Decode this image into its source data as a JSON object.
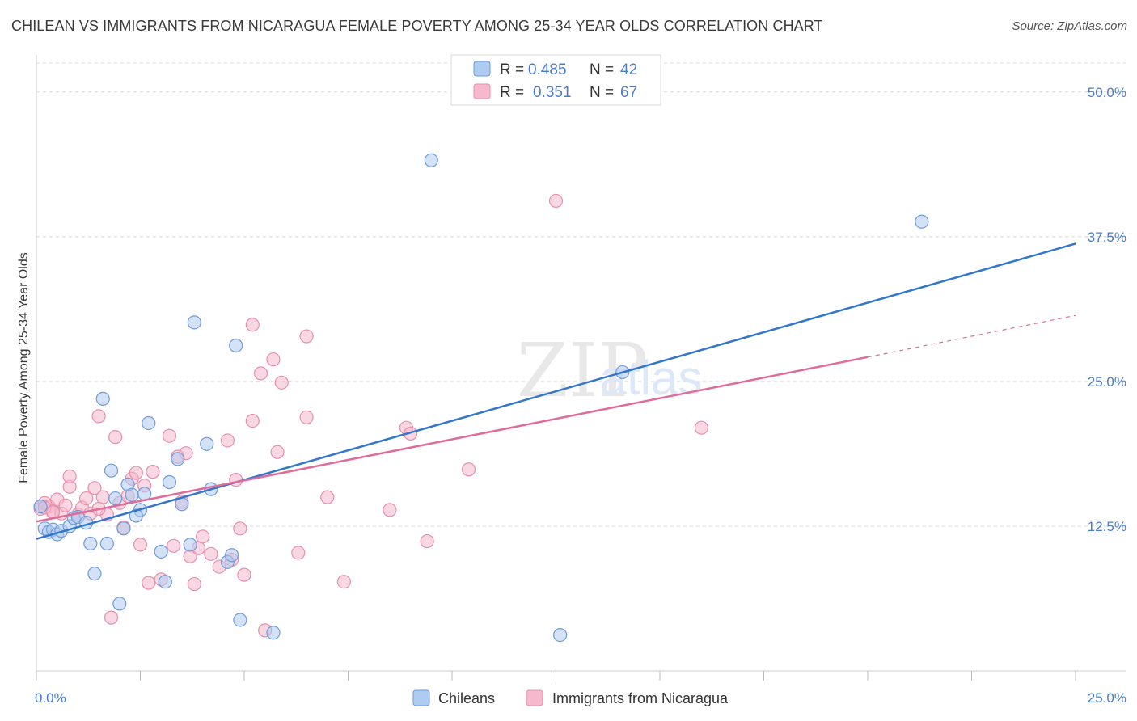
{
  "title": "CHILEAN VS IMMIGRANTS FROM NICARAGUA FEMALE POVERTY AMONG 25-34 YEAR OLDS CORRELATION CHART",
  "source": "Source: ZipAtlas.com",
  "watermark": "ZIPatlas",
  "colors": {
    "blue_fill": "#aecbf0",
    "blue_stroke": "#6f9bd8",
    "blue_line": "#3377cc",
    "pink_fill": "#f5b8cc",
    "pink_stroke": "#e78fab",
    "pink_line": "#e06b99",
    "tick_text": "#4a7cc9",
    "grid": "#d8d8d8"
  },
  "legend": {
    "rows": [
      {
        "r_label": "R =",
        "r_value": "0.485",
        "n_label": "N =",
        "n_value": "42"
      },
      {
        "r_label": "R =",
        "r_value": "0.351",
        "n_label": "N =",
        "n_value": "67"
      }
    ]
  },
  "chart_data": {
    "type": "scatter",
    "title": "CHILEAN VS IMMIGRANTS FROM NICARAGUA FEMALE POVERTY AMONG 25-34 YEAR OLDS CORRELATION CHART",
    "xlabel": "",
    "ylabel": "Female Poverty Among 25-34 Year Olds",
    "xlim": [
      0,
      25
    ],
    "ylim": [
      0,
      52.5
    ],
    "x_ticks": [
      "0.0%",
      "25.0%"
    ],
    "y_ticks": [
      {
        "value": 12.5,
        "label": "12.5%"
      },
      {
        "value": 25.0,
        "label": "25.0%"
      },
      {
        "value": 37.5,
        "label": "37.5%"
      },
      {
        "value": 50.0,
        "label": "50.0%"
      }
    ],
    "grid": true,
    "legend_position": "top-center",
    "series": [
      {
        "name": "Chileans",
        "color": "#aecbf0",
        "r": 0.485,
        "n": 42,
        "trend": {
          "x": [
            0,
            25
          ],
          "y": [
            11.4,
            36.9
          ]
        },
        "points": [
          [
            0.1,
            14.2
          ],
          [
            0.2,
            12.3
          ],
          [
            0.3,
            12.0
          ],
          [
            0.4,
            12.2
          ],
          [
            0.5,
            11.8
          ],
          [
            0.6,
            12.1
          ],
          [
            0.8,
            12.5
          ],
          [
            0.9,
            13.2
          ],
          [
            1.0,
            13.3
          ],
          [
            1.2,
            12.8
          ],
          [
            1.3,
            11.0
          ],
          [
            1.4,
            8.4
          ],
          [
            1.6,
            23.5
          ],
          [
            1.7,
            11.0
          ],
          [
            1.8,
            17.3
          ],
          [
            1.9,
            14.9
          ],
          [
            2.0,
            5.8
          ],
          [
            2.1,
            12.3
          ],
          [
            2.2,
            16.1
          ],
          [
            2.3,
            15.2
          ],
          [
            2.5,
            13.9
          ],
          [
            2.6,
            15.3
          ],
          [
            2.7,
            21.4
          ],
          [
            3.0,
            10.3
          ],
          [
            3.1,
            7.7
          ],
          [
            3.2,
            16.3
          ],
          [
            3.4,
            18.3
          ],
          [
            3.5,
            14.4
          ],
          [
            3.7,
            10.9
          ],
          [
            3.8,
            30.1
          ],
          [
            4.1,
            19.6
          ],
          [
            4.2,
            15.7
          ],
          [
            4.6,
            9.4
          ],
          [
            4.7,
            10.0
          ],
          [
            4.8,
            28.1
          ],
          [
            4.9,
            4.4
          ],
          [
            5.7,
            3.3
          ],
          [
            9.5,
            44.1
          ],
          [
            12.6,
            3.1
          ],
          [
            14.1,
            25.8
          ],
          [
            21.3,
            38.8
          ],
          [
            2.4,
            13.4
          ]
        ]
      },
      {
        "name": "Immigrants from Nicaragua",
        "color": "#f5b8cc",
        "r": 0.351,
        "n": 67,
        "trend": {
          "x": [
            0,
            20
          ],
          "y": [
            12.9,
            27.1
          ]
        },
        "trend_dashed": {
          "x": [
            20,
            25
          ],
          "y": [
            27.1,
            30.7
          ]
        },
        "points": [
          [
            0.1,
            14.0
          ],
          [
            0.2,
            14.5
          ],
          [
            0.3,
            14.2
          ],
          [
            0.4,
            13.8
          ],
          [
            0.5,
            14.8
          ],
          [
            0.6,
            13.6
          ],
          [
            0.7,
            14.3
          ],
          [
            0.8,
            15.9
          ],
          [
            0.8,
            16.8
          ],
          [
            1.0,
            13.5
          ],
          [
            1.1,
            14.1
          ],
          [
            1.2,
            14.9
          ],
          [
            1.3,
            13.6
          ],
          [
            1.4,
            15.8
          ],
          [
            1.5,
            22.0
          ],
          [
            1.6,
            15.0
          ],
          [
            1.7,
            13.5
          ],
          [
            1.8,
            4.6
          ],
          [
            1.9,
            20.2
          ],
          [
            2.0,
            14.5
          ],
          [
            2.1,
            12.4
          ],
          [
            2.2,
            15.1
          ],
          [
            2.3,
            16.6
          ],
          [
            2.4,
            17.1
          ],
          [
            2.5,
            10.9
          ],
          [
            2.6,
            16.0
          ],
          [
            2.7,
            7.6
          ],
          [
            2.8,
            17.2
          ],
          [
            3.0,
            7.9
          ],
          [
            3.2,
            20.3
          ],
          [
            3.3,
            10.8
          ],
          [
            3.4,
            18.5
          ],
          [
            3.5,
            14.6
          ],
          [
            3.6,
            18.8
          ],
          [
            3.7,
            9.9
          ],
          [
            3.8,
            7.5
          ],
          [
            3.9,
            10.6
          ],
          [
            4.0,
            11.6
          ],
          [
            4.2,
            10.1
          ],
          [
            4.4,
            9.0
          ],
          [
            4.6,
            19.9
          ],
          [
            4.7,
            9.6
          ],
          [
            4.8,
            16.5
          ],
          [
            4.9,
            12.3
          ],
          [
            5.0,
            8.3
          ],
          [
            5.2,
            21.6
          ],
          [
            5.2,
            29.9
          ],
          [
            5.4,
            25.7
          ],
          [
            5.5,
            3.5
          ],
          [
            5.7,
            26.9
          ],
          [
            5.8,
            18.9
          ],
          [
            5.9,
            24.9
          ],
          [
            6.3,
            10.2
          ],
          [
            6.5,
            28.9
          ],
          [
            6.5,
            21.9
          ],
          [
            7.0,
            15.0
          ],
          [
            7.4,
            7.7
          ],
          [
            8.5,
            13.9
          ],
          [
            8.9,
            21.0
          ],
          [
            9.0,
            20.5
          ],
          [
            9.4,
            11.2
          ],
          [
            10.4,
            17.4
          ],
          [
            12.5,
            40.6
          ],
          [
            16.0,
            21.0
          ],
          [
            0.2,
            14.1
          ],
          [
            0.4,
            13.7
          ],
          [
            1.5,
            14.0
          ]
        ]
      }
    ]
  },
  "bottom_legend": {
    "items": [
      {
        "label": "Chileans"
      },
      {
        "label": "Immigrants from Nicaragua"
      }
    ]
  }
}
